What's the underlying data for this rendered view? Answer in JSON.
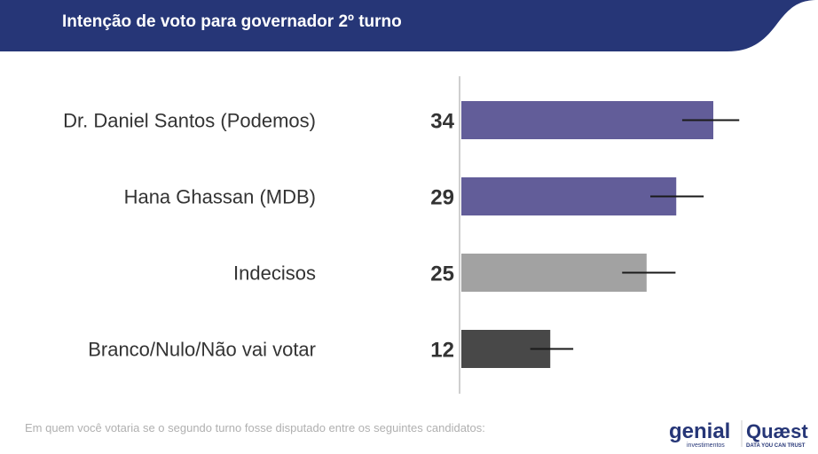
{
  "header": {
    "title": "Intenção de voto para governador 2º turno",
    "color": "#263677"
  },
  "chart_data": {
    "type": "bar",
    "orientation": "horizontal",
    "title": "Intenção de voto para governador 2º turno",
    "categories": [
      "Dr. Daniel Santos (Podemos)",
      "Hana Ghassan (MDB)",
      "Indecisos",
      "Branco/Nulo/Não vai votar"
    ],
    "values": [
      34,
      29,
      25,
      12
    ],
    "error_bars": [
      [
        29.8,
        37.5
      ],
      [
        25.5,
        32.7
      ],
      [
        21.7,
        28.9
      ],
      [
        9.3,
        15.1
      ]
    ],
    "colors": [
      "#625d99",
      "#625d99",
      "#a2a2a2",
      "#484848"
    ],
    "xlim": [
      0,
      40
    ],
    "grid": false
  },
  "footnote": "Em quem você votaria se o segundo turno fosse disputado entre os seguintes candidatos:",
  "logos": {
    "genial": "genial",
    "genial_sub": "investimentos",
    "quaest": "Quaest",
    "quaest_sub": "DATA YOU CAN TRUST"
  }
}
